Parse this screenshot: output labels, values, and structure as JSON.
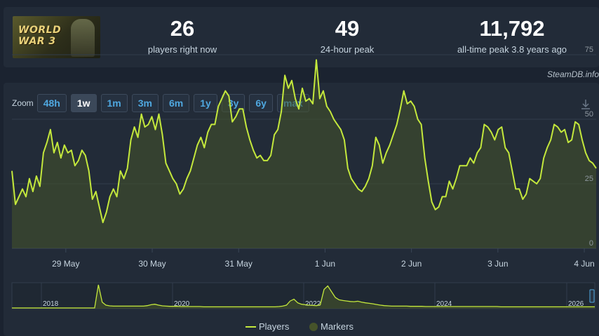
{
  "game": {
    "logo_text": "WORLD\nWAR 3",
    "logo_icon": "game-cover-image"
  },
  "stats": [
    {
      "value": "26",
      "label": "players right now"
    },
    {
      "value": "49",
      "label": "24-hour peak"
    },
    {
      "value": "11,792",
      "label": "all-time peak 3.8 years ago"
    }
  ],
  "credit": "SteamDB.info",
  "zoom": {
    "label": "Zoom",
    "buttons": [
      "48h",
      "1w",
      "1m",
      "3m",
      "6m",
      "1y",
      "3y",
      "6y",
      "max"
    ],
    "active": "1w"
  },
  "download_icon": "download-icon",
  "colors": {
    "line": "#c4e83c",
    "fill": "#46532a",
    "grid": "#323d4c",
    "accent": "#4fa8e0"
  },
  "legend": {
    "players": "Players",
    "markers": "Markers"
  },
  "chart_data": {
    "type": "line",
    "series": [
      {
        "name": "Players",
        "y": [
          30,
          17,
          20,
          23,
          20,
          27,
          22,
          28,
          24,
          37,
          41,
          46,
          37,
          41,
          35,
          40,
          37,
          38,
          32,
          34,
          38,
          36,
          30,
          19,
          22,
          16,
          10,
          14,
          20,
          23,
          20,
          30,
          27,
          31,
          42,
          47,
          43,
          52,
          47,
          48,
          51,
          46,
          52,
          44,
          33,
          30,
          27,
          25,
          21,
          23,
          27,
          30,
          35,
          40,
          43,
          39,
          45,
          48,
          48,
          55,
          58,
          61,
          59,
          49,
          51,
          54,
          54,
          47,
          42,
          38,
          35,
          36,
          34,
          34,
          36,
          44,
          46,
          53,
          67,
          62,
          65,
          58,
          54,
          62,
          57,
          58,
          56,
          73,
          58,
          61,
          55,
          53,
          50,
          48,
          46,
          42,
          31,
          27,
          25,
          23,
          22,
          24,
          27,
          32,
          43,
          40,
          33,
          37,
          40,
          44,
          48,
          54,
          61,
          56,
          57,
          55,
          50,
          48,
          35,
          26,
          18,
          15,
          16,
          20,
          20,
          26,
          23,
          27,
          32,
          32,
          32,
          35,
          33,
          37,
          39,
          48,
          47,
          45,
          42,
          46,
          47,
          39,
          37,
          30,
          23,
          23,
          19,
          21,
          27,
          26,
          25,
          27,
          35,
          39,
          42,
          48,
          47,
          45,
          46,
          41,
          42,
          49,
          48,
          42,
          37,
          34,
          33,
          31
        ]
      }
    ],
    "x_ticks": [
      "29 May",
      "30 May",
      "31 May",
      "1 Jun",
      "2 Jun",
      "3 Jun",
      "4 Jun"
    ],
    "y_ticks": [
      0,
      25,
      50,
      75
    ],
    "ylim": [
      0,
      100
    ],
    "navigator": {
      "x_ticks": [
        "2018",
        "2020",
        "2022",
        "2024",
        "2026"
      ],
      "y": [
        0,
        0,
        0,
        0,
        0,
        0,
        0,
        0,
        0,
        0,
        0,
        0,
        0,
        0,
        0,
        0,
        0,
        0,
        0,
        0,
        0,
        0,
        0,
        100,
        25,
        12,
        9,
        8,
        8,
        8,
        8,
        8,
        8,
        8,
        8,
        8,
        10,
        14,
        16,
        12,
        9,
        8,
        7,
        7,
        7,
        6,
        6,
        6,
        6,
        6,
        6,
        5,
        5,
        5,
        5,
        5,
        5,
        5,
        5,
        5,
        5,
        5,
        5,
        5,
        5,
        5,
        5,
        5,
        5,
        5,
        5,
        6,
        8,
        12,
        30,
        38,
        22,
        16,
        14,
        12,
        11,
        10,
        14,
        80,
        95,
        70,
        45,
        35,
        32,
        30,
        28,
        27,
        29,
        25,
        22,
        20,
        18,
        15,
        12,
        10,
        9,
        8,
        8,
        8,
        8,
        8,
        7,
        7,
        7,
        7,
        6,
        6,
        6,
        6,
        6,
        6,
        6,
        6,
        6,
        6,
        6,
        6,
        6,
        6,
        6,
        6,
        6,
        6,
        6,
        6,
        5,
        5,
        5,
        5,
        5,
        5,
        5,
        5,
        5,
        5,
        5,
        5,
        5,
        5,
        5,
        5,
        5,
        5,
        5,
        5,
        5,
        5,
        5,
        5,
        5,
        5
      ]
    }
  }
}
